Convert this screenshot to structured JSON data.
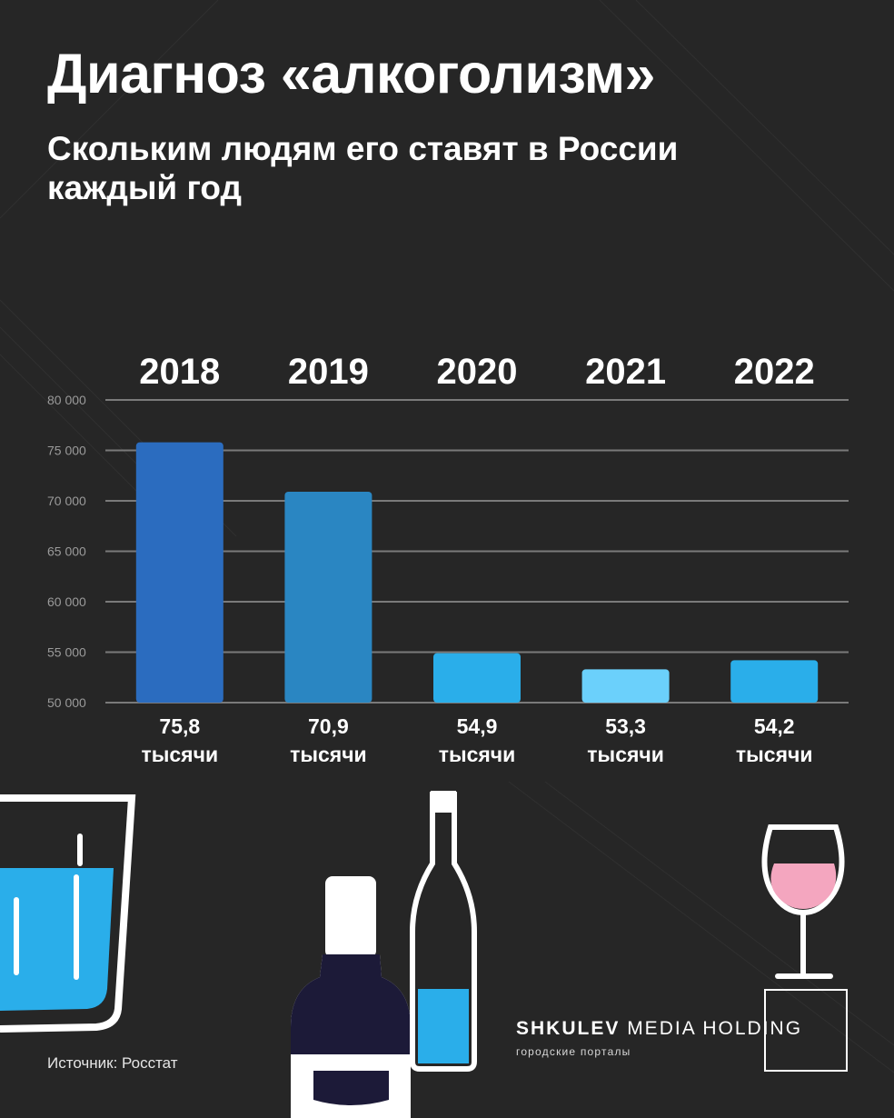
{
  "header": {
    "title": "Диагноз «алкоголизм»",
    "subtitle": "Скольким людям его ставят в России каждый год"
  },
  "chart_data": {
    "type": "bar",
    "categories": [
      "2018",
      "2019",
      "2020",
      "2021",
      "2022"
    ],
    "values": [
      75800,
      70900,
      54900,
      53300,
      54200
    ],
    "value_labels": [
      "75,8",
      "70,9",
      "54,9",
      "53,3",
      "54,2"
    ],
    "unit_label": "тысячи",
    "ylim": [
      50000,
      80000
    ],
    "yticks": [
      50000,
      55000,
      60000,
      65000,
      70000,
      75000,
      80000
    ],
    "ytick_labels": [
      "50 000",
      "55 000",
      "60 000",
      "65 000",
      "70 000",
      "75 000",
      "80 000"
    ],
    "grid": true,
    "bar_colors": [
      "#2b6cbf",
      "#2a86c2",
      "#2aaeea",
      "#6bd0fb",
      "#2aaeea"
    ]
  },
  "footer": {
    "source": "Источник: Росстат",
    "logo_bold": "SHKULEV",
    "logo_light": " MEDIA HOLDING",
    "logo_sub": "городские порталы"
  },
  "colors": {
    "background": "#262626",
    "grid": "#7a7a7a",
    "liquid_blue": "#2aaeea",
    "wine_pink": "#f4a6bf",
    "bottle_dark": "#1c1a38"
  }
}
